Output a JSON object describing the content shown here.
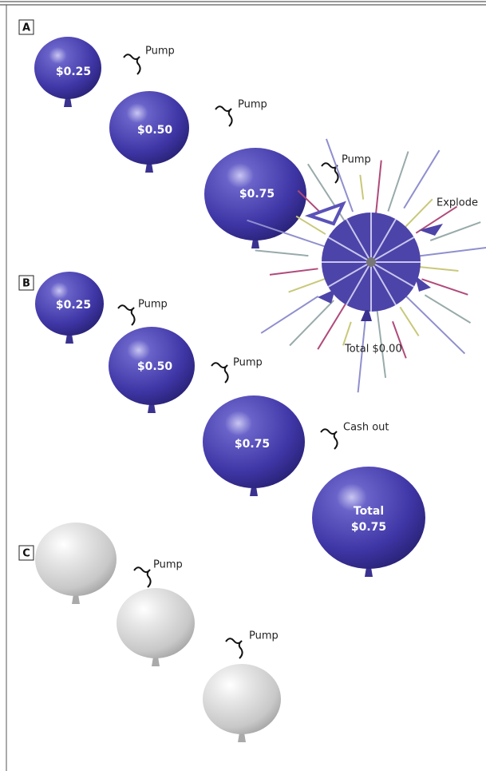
{
  "panels": [
    {
      "label": "A",
      "balloons": [
        "$0.25",
        "$0.50",
        "$0.75"
      ],
      "actions": [
        "Pump",
        "Pump",
        "Pump",
        "Explode"
      ],
      "result": "Total $0.00"
    },
    {
      "label": "B",
      "balloons": [
        "$0.25",
        "$0.50",
        "$0.75"
      ],
      "actions": [
        "Pump",
        "Pump",
        "Cash out"
      ],
      "result": [
        "Total",
        "$0.75"
      ]
    },
    {
      "label": "C",
      "actions": [
        "Pump",
        "Pump"
      ]
    }
  ]
}
